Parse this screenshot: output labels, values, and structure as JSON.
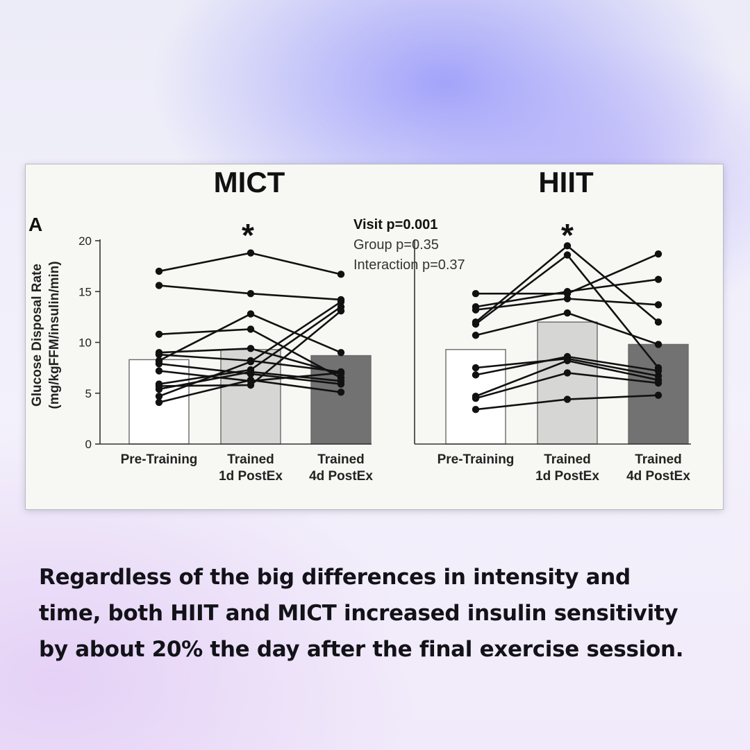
{
  "caption": {
    "lines": [
      "Regardless of the big differences in intensity and",
      "time, both HIIT and MICT increased insulin sensitivity",
      "by about 20% the day after the final exercise session."
    ]
  },
  "figure": {
    "panel_letter": "A",
    "stats": [
      "Visit p=0.001",
      "Group p=0.35",
      "Interaction p=0.37"
    ],
    "ylabel_lines": [
      "Glucose Disposal Rate",
      "(mg/kgFFM/insulin/min)"
    ],
    "significance_marker": "*"
  },
  "colors": {
    "bar_pre": "#ffffff",
    "bar_1d": "#d6d6d4",
    "bar_4d": "#727272",
    "line": "#111111",
    "caption_text": "#121218"
  },
  "chart_data": [
    {
      "type": "bar",
      "title": "MICT",
      "categories": [
        [
          "Pre-Training"
        ],
        [
          "Trained",
          "1d PostEx"
        ],
        [
          "Trained",
          "4d PostEx"
        ]
      ],
      "values": [
        8.3,
        9.3,
        8.7
      ],
      "ylim": [
        0,
        20
      ],
      "yticks": [
        0,
        5,
        10,
        15,
        20
      ],
      "significant_category": 1,
      "individuals": [
        [
          17.0,
          18.8,
          16.7
        ],
        [
          15.6,
          14.8,
          14.2
        ],
        [
          10.8,
          11.3,
          6.5
        ],
        [
          9.0,
          9.4,
          6.9
        ],
        [
          8.8,
          8.2,
          7.1
        ],
        [
          8.2,
          12.8,
          9.0
        ],
        [
          7.9,
          6.9,
          5.9
        ],
        [
          7.2,
          6.2,
          7.0
        ],
        [
          5.9,
          7.3,
          13.5
        ],
        [
          5.7,
          5.8,
          13.1
        ],
        [
          5.4,
          7.1,
          6.2
        ],
        [
          4.7,
          8.1,
          14.0
        ],
        [
          4.1,
          6.3,
          5.1
        ]
      ]
    },
    {
      "type": "bar",
      "title": "HIIT",
      "categories": [
        [
          "Pre-Training"
        ],
        [
          "Trained",
          "1d PostEx"
        ],
        [
          "Trained",
          "4d PostEx"
        ]
      ],
      "values": [
        9.3,
        12.0,
        9.8
      ],
      "ylim": [
        0,
        20
      ],
      "significant_category": 1,
      "individuals": [
        [
          14.8,
          14.8,
          18.7
        ],
        [
          13.5,
          15.0,
          16.2
        ],
        [
          13.2,
          14.3,
          13.7
        ],
        [
          12.0,
          19.5,
          12.0
        ],
        [
          11.8,
          18.6,
          7.5
        ],
        [
          10.7,
          12.9,
          9.8
        ],
        [
          7.5,
          8.4,
          6.7
        ],
        [
          6.8,
          8.6,
          7.2
        ],
        [
          4.7,
          8.2,
          6.3
        ],
        [
          4.5,
          7.0,
          6.0
        ],
        [
          3.4,
          4.4,
          4.8
        ]
      ]
    }
  ]
}
